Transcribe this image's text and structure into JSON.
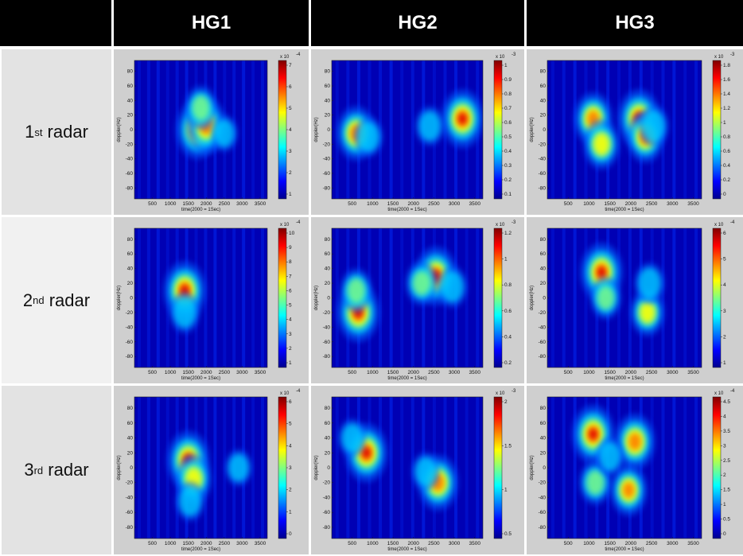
{
  "columns": [
    "HG1",
    "HG2",
    "HG3"
  ],
  "rows": [
    {
      "prefix": "1",
      "suffix": "st",
      "word": " radar"
    },
    {
      "prefix": "2",
      "suffix": "nd",
      "word": " radar"
    },
    {
      "prefix": "3",
      "suffix": "rd",
      "word": " radar"
    }
  ],
  "axes": {
    "xlabel": "time(2000 = 1Sec)",
    "ylabel": "doppler(Hz)",
    "xticks": [
      "500",
      "1000",
      "1500",
      "2000",
      "2500",
      "3000",
      "3500"
    ],
    "yticks": [
      "80",
      "60",
      "40",
      "20",
      "0",
      "-20",
      "-40",
      "-60",
      "-80"
    ]
  },
  "colormap": [
    "#00008f",
    "#0000ff",
    "#0080ff",
    "#00ffff",
    "#80ff80",
    "#ffff00",
    "#ff8000",
    "#ff0000",
    "#800000"
  ],
  "panels": [
    {
      "row": 0,
      "col": 0,
      "cb_exp": "x 10",
      "cb_pow": "-4",
      "cb_ticks": [
        "7",
        "6",
        "5",
        "4",
        "3",
        "2",
        "1"
      ],
      "blobs": [
        {
          "t": 1750,
          "f": 0,
          "a": 1
        },
        {
          "t": 2000,
          "f": 5,
          "a": 0.9
        },
        {
          "t": 1850,
          "f": 30,
          "a": 0.5
        },
        {
          "t": 2500,
          "f": -5,
          "a": 0.25
        }
      ]
    },
    {
      "row": 0,
      "col": 1,
      "cb_exp": "x 10",
      "cb_pow": "-3",
      "cb_ticks": [
        "1",
        "0.9",
        "0.8",
        "0.7",
        "0.6",
        "0.5",
        "0.4",
        "0.3",
        "0.2",
        "0.1"
      ],
      "blobs": [
        {
          "t": 600,
          "f": -5,
          "a": 0.85
        },
        {
          "t": 3200,
          "f": 15,
          "a": 1
        },
        {
          "t": 900,
          "f": -10,
          "a": 0.35
        },
        {
          "t": 2400,
          "f": 5,
          "a": 0.35
        }
      ]
    },
    {
      "row": 0,
      "col": 2,
      "cb_exp": "x 10",
      "cb_pow": "-3",
      "cb_ticks": [
        "1.8",
        "1.6",
        "1.4",
        "1.2",
        "1",
        "0.8",
        "0.6",
        "0.4",
        "0.2",
        "0"
      ],
      "blobs": [
        {
          "t": 1100,
          "f": 15,
          "a": 0.8
        },
        {
          "t": 1300,
          "f": -20,
          "a": 0.7
        },
        {
          "t": 2200,
          "f": 15,
          "a": 1
        },
        {
          "t": 2350,
          "f": -10,
          "a": 0.75
        },
        {
          "t": 2550,
          "f": 5,
          "a": 0.4
        }
      ]
    },
    {
      "row": 1,
      "col": 0,
      "cb_exp": "x 10",
      "cb_pow": "-4",
      "cb_ticks": [
        "10",
        "9",
        "8",
        "7",
        "6",
        "5",
        "4",
        "3",
        "2",
        "1"
      ],
      "blobs": [
        {
          "t": 1400,
          "f": 10,
          "a": 1
        },
        {
          "t": 1400,
          "f": -20,
          "a": 0.4
        }
      ]
    },
    {
      "row": 1,
      "col": 1,
      "cb_exp": "x 10",
      "cb_pow": "-3",
      "cb_ticks": [
        "1.2",
        "1",
        "0.8",
        "0.6",
        "0.4",
        "0.2"
      ],
      "blobs": [
        {
          "t": 650,
          "f": -20,
          "a": 1
        },
        {
          "t": 600,
          "f": 10,
          "a": 0.5
        },
        {
          "t": 2550,
          "f": 30,
          "a": 1
        },
        {
          "t": 2200,
          "f": 20,
          "a": 0.5
        },
        {
          "t": 2950,
          "f": 15,
          "a": 0.4
        }
      ]
    },
    {
      "row": 1,
      "col": 2,
      "cb_exp": "x 10",
      "cb_pow": "-4",
      "cb_ticks": [
        "6",
        "5",
        "4",
        "3",
        "2",
        "1"
      ],
      "blobs": [
        {
          "t": 1300,
          "f": 35,
          "a": 1
        },
        {
          "t": 1400,
          "f": 0,
          "a": 0.45
        },
        {
          "t": 2400,
          "f": -20,
          "a": 0.6
        },
        {
          "t": 2450,
          "f": 20,
          "a": 0.4
        }
      ]
    },
    {
      "row": 2,
      "col": 0,
      "cb_exp": "x 10",
      "cb_pow": "-4",
      "cb_ticks": [
        "6",
        "5",
        "4",
        "3",
        "2",
        "1",
        "0"
      ],
      "blobs": [
        {
          "t": 1500,
          "f": 10,
          "a": 1
        },
        {
          "t": 1650,
          "f": -15,
          "a": 0.7
        },
        {
          "t": 1550,
          "f": -45,
          "a": 0.35
        },
        {
          "t": 2900,
          "f": 0,
          "a": 0.25
        }
      ]
    },
    {
      "row": 2,
      "col": 1,
      "cb_exp": "x 10",
      "cb_pow": "-3",
      "cb_ticks": [
        "2",
        "1.5",
        "1",
        "0.5"
      ],
      "blobs": [
        {
          "t": 850,
          "f": 20,
          "a": 1
        },
        {
          "t": 2600,
          "f": -20,
          "a": 0.9
        },
        {
          "t": 500,
          "f": 40,
          "a": 0.3
        },
        {
          "t": 2300,
          "f": -5,
          "a": 0.3
        }
      ]
    },
    {
      "row": 2,
      "col": 2,
      "cb_exp": "x 10",
      "cb_pow": "-4",
      "cb_ticks": [
        "4.5",
        "4",
        "3.5",
        "3",
        "2.5",
        "2",
        "1.5",
        "1",
        "0.5",
        "0"
      ],
      "blobs": [
        {
          "t": 1100,
          "f": 45,
          "a": 1
        },
        {
          "t": 2100,
          "f": 35,
          "a": 0.9
        },
        {
          "t": 1950,
          "f": -30,
          "a": 0.75
        },
        {
          "t": 1150,
          "f": -20,
          "a": 0.5
        },
        {
          "t": 1500,
          "f": 15,
          "a": 0.3
        }
      ]
    }
  ]
}
